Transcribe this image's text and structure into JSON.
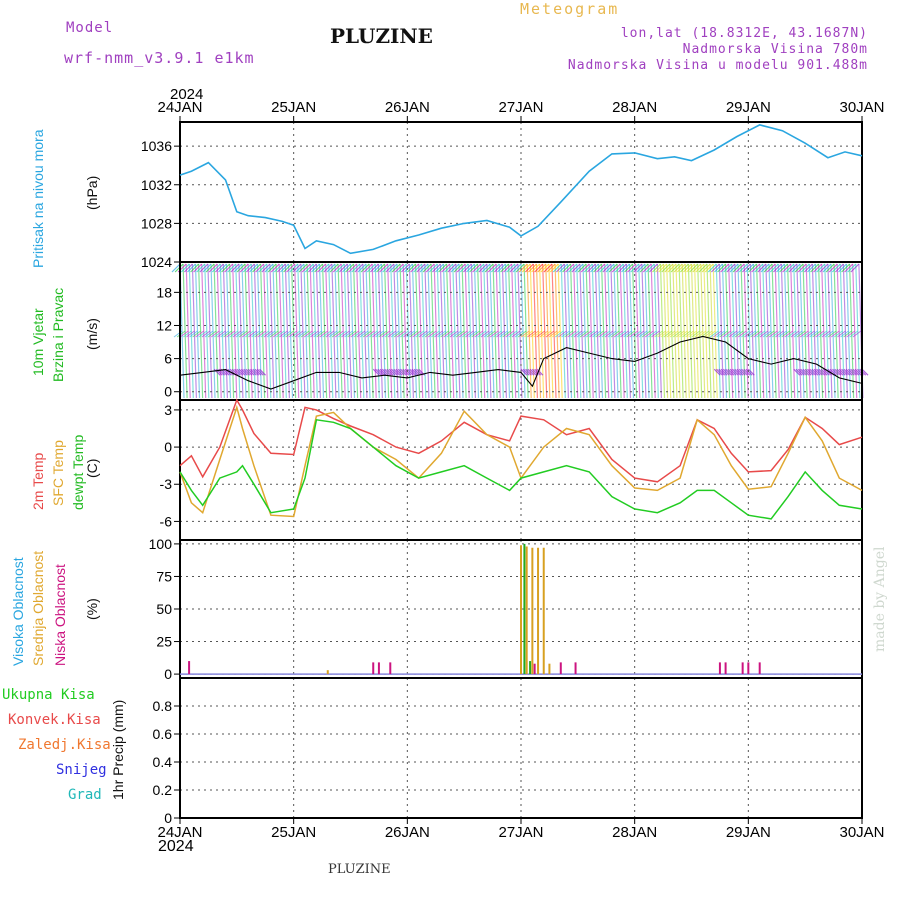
{
  "header": {
    "model_label": "Model",
    "model_name": "wrf-nmm_v3.9.1  e1km",
    "title": "PLUZINE",
    "meteogram": "Meteogram",
    "lonlat": "lon,lat (18.8312E, 43.1687N)",
    "elev": "Nadmorska Visina 780m",
    "elev_model": "Nadmorska Visina u modelu 901.488m",
    "footer_title": "PLUZINE",
    "credit": "made by Angel"
  },
  "time_axis": {
    "year_top": "2024",
    "year_bottom": "2024",
    "labels": [
      "24JAN",
      "25JAN",
      "26JAN",
      "27JAN",
      "28JAN",
      "29JAN",
      "30JAN"
    ]
  },
  "panels": {
    "pressure": {
      "label1": "Pritisak na nivou mora",
      "unit": "(hPa)"
    },
    "wind": {
      "label1": "10m Vjetar",
      "label2": "Brzina i Pravac",
      "unit": "(m/s)"
    },
    "temp": {
      "label1": "2m Temp",
      "label2": "SFC Temp",
      "label3": "dewpt Temp",
      "unit": "(C)"
    },
    "cloud": {
      "label1": "Visoka Oblacnost",
      "label2": "Srednja Oblacnost",
      "label3": "Niska Oblacnost",
      "unit": "(%)"
    },
    "precip": {
      "unit": "1hr Precip (mm)",
      "legend": [
        "Ukupna Kisa",
        "Konvek.Kisa",
        "Zaledj.Kisa",
        "Snijeg",
        "Grad"
      ]
    }
  },
  "colors": {
    "pressure": "#2aa6e0",
    "temp2m": "#e84a4a",
    "sfc": "#e0a830",
    "dewpt": "#22cc22",
    "high_cloud": "#22aa22",
    "mid_cloud": "#d8a020",
    "low_cloud": "#cc1480",
    "legend": [
      "#22cc22",
      "#e84a4a",
      "#f07830",
      "#3030e0",
      "#20b8b8"
    ]
  },
  "chart_data": [
    {
      "type": "line",
      "title": "Pritisak na nivou mora",
      "ylabel": "(hPa)",
      "ylim": [
        1024,
        1038.5
      ],
      "yticks": [
        1024,
        1028,
        1032,
        1036
      ],
      "series": [
        {
          "name": "Pritisak na nivou mora",
          "x": [
            24.0,
            24.1,
            24.25,
            24.4,
            24.5,
            24.6,
            24.75,
            24.9,
            25.0,
            25.1,
            25.2,
            25.35,
            25.5,
            25.7,
            25.9,
            26.1,
            26.3,
            26.5,
            26.7,
            26.9,
            27.0,
            27.15,
            27.35,
            27.6,
            27.8,
            28.0,
            28.2,
            28.35,
            28.5,
            28.7,
            28.9,
            29.1,
            29.3,
            29.5,
            29.7,
            29.85,
            30.0
          ],
          "y": [
            1033.0,
            1033.4,
            1034.3,
            1032.5,
            1029.2,
            1028.8,
            1028.6,
            1028.2,
            1027.8,
            1025.4,
            1026.2,
            1025.8,
            1024.9,
            1025.3,
            1026.2,
            1026.8,
            1027.5,
            1028.0,
            1028.3,
            1027.6,
            1026.7,
            1027.7,
            1030.2,
            1033.4,
            1035.2,
            1035.3,
            1034.7,
            1034.9,
            1034.5,
            1035.6,
            1037.0,
            1038.2,
            1037.6,
            1036.3,
            1034.8,
            1035.4,
            1035.0
          ]
        }
      ]
    },
    {
      "type": "line",
      "title": "10m Vjetar Brzina i Pravac",
      "ylabel": "(m/s)",
      "ylim": [
        -1.5,
        23.5
      ],
      "yticks": [
        0,
        6,
        12,
        18
      ],
      "series": [
        {
          "name": "speed",
          "x": [
            24.0,
            24.2,
            24.4,
            24.6,
            24.8,
            25.0,
            25.2,
            25.4,
            25.6,
            25.8,
            26.0,
            26.2,
            26.4,
            26.6,
            26.8,
            27.0,
            27.1,
            27.2,
            27.4,
            27.6,
            27.8,
            28.0,
            28.2,
            28.4,
            28.6,
            28.8,
            29.0,
            29.2,
            29.4,
            29.6,
            29.8,
            30.0
          ],
          "y": [
            3,
            3.5,
            4,
            2,
            0.5,
            2,
            3.5,
            3.5,
            2.5,
            3,
            2.5,
            3.5,
            3,
            3.5,
            4,
            3.5,
            1,
            6,
            8,
            7,
            6,
            5.5,
            7,
            9,
            10,
            9,
            6,
            5,
            6,
            5,
            2.5,
            1.5
          ]
        }
      ]
    },
    {
      "type": "line",
      "title": "2m Temp / SFC Temp / dewpt Temp",
      "ylabel": "(C)",
      "ylim": [
        -7.5,
        3.8
      ],
      "yticks": [
        -6,
        -3,
        0,
        3
      ],
      "series": [
        {
          "name": "2m Temp",
          "x": [
            24.0,
            24.1,
            24.2,
            24.35,
            24.5,
            24.55,
            24.65,
            24.8,
            25.0,
            25.1,
            25.2,
            25.35,
            25.5,
            25.7,
            25.9,
            26.1,
            26.3,
            26.5,
            26.7,
            26.9,
            27.0,
            27.2,
            27.4,
            27.6,
            27.8,
            28.0,
            28.2,
            28.4,
            28.55,
            28.7,
            28.85,
            29.0,
            29.2,
            29.35,
            29.5,
            29.65,
            29.8,
            30.0
          ],
          "y": [
            -1.5,
            -0.7,
            -2.4,
            0.0,
            3.8,
            3.0,
            1.1,
            -0.5,
            -0.6,
            3.2,
            3.0,
            2.3,
            1.7,
            1.0,
            0.0,
            -0.5,
            0.5,
            2.0,
            1.0,
            0.5,
            2.5,
            2.2,
            1.0,
            1.5,
            -1.0,
            -2.5,
            -2.8,
            -1.5,
            2.2,
            1.5,
            -0.5,
            -2.0,
            -1.9,
            -0.2,
            2.4,
            1.5,
            0.2,
            0.8
          ]
        },
        {
          "name": "SFC Temp",
          "x": [
            24.0,
            24.1,
            24.2,
            24.35,
            24.5,
            24.55,
            24.65,
            24.8,
            25.0,
            25.1,
            25.2,
            25.35,
            25.5,
            25.7,
            25.9,
            26.1,
            26.3,
            26.5,
            26.7,
            26.9,
            27.0,
            27.2,
            27.4,
            27.6,
            27.8,
            28.0,
            28.2,
            28.4,
            28.55,
            28.7,
            28.85,
            29.0,
            29.2,
            29.35,
            29.5,
            29.65,
            29.8,
            30.0
          ],
          "y": [
            -2.0,
            -4.5,
            -5.3,
            -1.0,
            3.2,
            1.5,
            -1.5,
            -5.5,
            -5.6,
            -1.5,
            2.5,
            2.8,
            1.5,
            0.0,
            -1.0,
            -2.5,
            -0.5,
            2.9,
            1.0,
            0.0,
            -2.5,
            0.0,
            1.5,
            1.0,
            -1.5,
            -3.3,
            -3.5,
            -2.5,
            2.2,
            1.0,
            -1.5,
            -3.4,
            -3.2,
            -0.5,
            2.4,
            0.5,
            -2.5,
            -3.5
          ]
        },
        {
          "name": "dewpt Temp",
          "x": [
            24.0,
            24.1,
            24.2,
            24.35,
            24.5,
            24.55,
            24.65,
            24.8,
            25.0,
            25.1,
            25.2,
            25.35,
            25.5,
            25.7,
            25.9,
            26.1,
            26.3,
            26.5,
            26.7,
            26.9,
            27.0,
            27.2,
            27.4,
            27.6,
            27.8,
            28.0,
            28.2,
            28.4,
            28.55,
            28.7,
            28.85,
            29.0,
            29.2,
            29.35,
            29.5,
            29.65,
            29.8,
            30.0
          ],
          "y": [
            -2.0,
            -3.5,
            -4.7,
            -2.5,
            -2.0,
            -1.5,
            -3.0,
            -5.3,
            -5.0,
            -2.5,
            2.2,
            2.0,
            1.5,
            0.0,
            -1.5,
            -2.5,
            -2.0,
            -1.5,
            -2.5,
            -3.5,
            -2.5,
            -2.0,
            -1.5,
            -2.0,
            -4.0,
            -5.0,
            -5.3,
            -4.5,
            -3.5,
            -3.5,
            -4.5,
            -5.5,
            -5.8,
            -4.0,
            -2.0,
            -3.5,
            -4.7,
            -5.0
          ]
        }
      ]
    },
    {
      "type": "bar",
      "title": "Oblacnost",
      "ylabel": "(%)",
      "ylim": [
        -3,
        103
      ],
      "yticks": [
        0,
        25,
        50,
        75,
        100
      ],
      "series": [
        {
          "name": "Srednja Oblacnost",
          "x": [
            25.3,
            27.0,
            27.05,
            27.1,
            27.15,
            27.2,
            27.25
          ],
          "y": [
            3,
            99,
            98,
            97,
            97,
            97,
            8
          ]
        },
        {
          "name": "Visoka Oblacnost",
          "x": [
            27.03,
            27.08
          ],
          "y": [
            100,
            10
          ]
        },
        {
          "name": "Niska Oblacnost",
          "x": [
            24.08,
            25.7,
            25.75,
            25.85,
            27.12,
            27.35,
            27.48,
            28.75,
            28.8,
            28.95,
            29.0,
            29.1
          ],
          "y": [
            10,
            9,
            9,
            9,
            8,
            9,
            9,
            9,
            9,
            9,
            9,
            9
          ]
        }
      ]
    },
    {
      "type": "bar",
      "title": "1hr Precip",
      "ylabel": "(mm)",
      "ylim": [
        0,
        1.0
      ],
      "yticks": [
        0,
        0.2,
        0.4,
        0.6,
        0.8
      ],
      "series": [
        {
          "name": "Ukupna Kisa",
          "x": [],
          "y": []
        }
      ]
    }
  ]
}
